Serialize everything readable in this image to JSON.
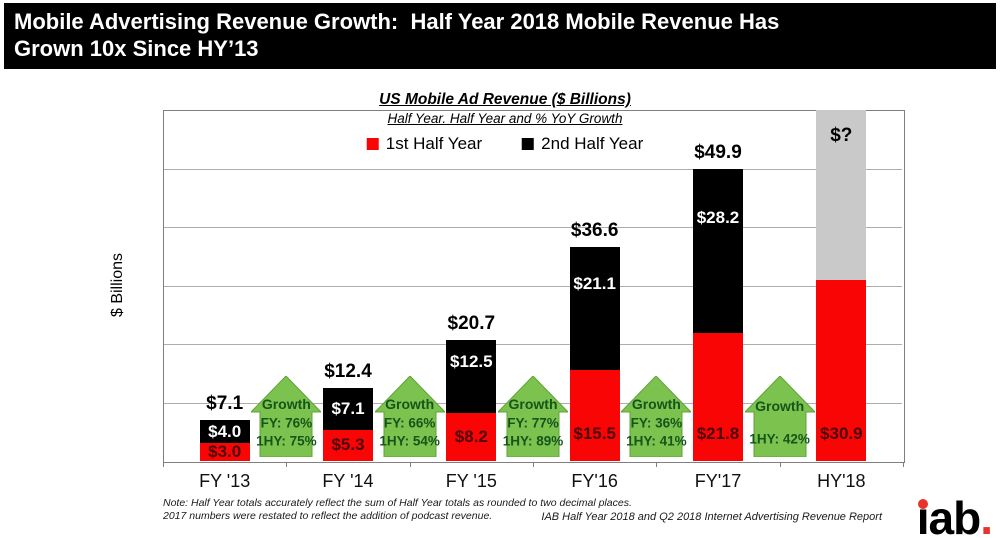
{
  "header": {
    "title_line1": "Mobile Advertising Revenue Growth:  Half Year 2018 Mobile Revenue Has",
    "title_line2": "Grown 10x Since HY’13"
  },
  "chart_data": {
    "type": "bar",
    "stacked": true,
    "title": "US Mobile Ad Revenue ($ Billions)",
    "subtitle": "Half Year. Half Year and % YoY Growth",
    "ylabel": "$ Billions",
    "ylim": [
      0,
      60
    ],
    "gridline_step": 10,
    "grid": "horizontal",
    "legend_position": "top-center",
    "legend": [
      {
        "label": "1st Half Year",
        "color": "#FA0505"
      },
      {
        "label": "2nd Half Year",
        "color": "#000000"
      }
    ],
    "categories": [
      "FY '13",
      "FY '14",
      "FY '15",
      "FY'16",
      "FY'17",
      "HY'18"
    ],
    "series": [
      {
        "name": "1st Half Year",
        "color": "#FA0505",
        "label_color": "#4D0606",
        "values": [
          3.0,
          5.3,
          8.2,
          15.5,
          21.8,
          30.9
        ],
        "data_labels": [
          "$3.0",
          "$5.3",
          "$8.2",
          "$15.5",
          "$21.8",
          "$30.9"
        ]
      },
      {
        "name": "2nd Half Year",
        "color": "#000000",
        "label_color": "#FFFFFF",
        "values": [
          4.0,
          7.1,
          12.5,
          21.1,
          28.2,
          null
        ],
        "data_labels": [
          "$4.0",
          "$7.1",
          "$12.5",
          "$21.1",
          "$28.2",
          null
        ]
      },
      {
        "name": "2nd Half Year unknown",
        "color": "#C9C9C9",
        "fill_to_top": true,
        "values": [
          null,
          null,
          null,
          null,
          null,
          null
        ],
        "data_labels": [
          null,
          null,
          null,
          null,
          null,
          null
        ]
      }
    ],
    "total_labels": [
      "$7.1",
      "$12.4",
      "$20.7",
      "$36.6",
      "$49.9",
      "$?"
    ],
    "growth_arrows": {
      "fill_color": "#7CC24F",
      "border_color": "#5FA337",
      "text_color": "#14551A",
      "items": [
        {
          "lines": [
            "Growth",
            "FY: 76%",
            "1HY: 75%"
          ]
        },
        {
          "lines": [
            "Growth",
            "FY: 66%",
            "1HY: 54%"
          ]
        },
        {
          "lines": [
            "Growth",
            "FY: 77%",
            "1HY: 89%"
          ]
        },
        {
          "lines": [
            "Growth",
            "FY: 36%",
            "1HY: 41%"
          ]
        },
        {
          "lines": [
            "Growth",
            "1HY: 42%"
          ]
        }
      ]
    }
  },
  "footer": {
    "note_line1": "Note: Half Year totals accurately reflect the sum of Half Year totals as rounded to two decimal places.",
    "note_line2": "2017 numbers were restated to reflect the addition of podcast revenue.",
    "source": "IAB Half Year 2018 and Q2 2018 Internet Advertising Revenue Report",
    "logo_text": "iab.",
    "logo_accent_color": "#E8332C"
  }
}
